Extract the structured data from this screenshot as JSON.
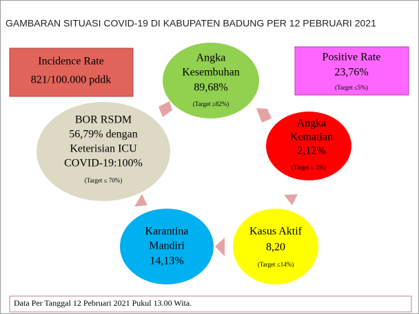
{
  "header": {
    "title": "GAMBARAN SITUASI COVID-19 DI KABUPATEN BADUNG PER 12 PEBRUARI 2021"
  },
  "incidence_rate": {
    "label": "Incidence Rate",
    "value": "821/100.000 pddk"
  },
  "positive_rate": {
    "label": "Positive Rate",
    "value": "23,76%",
    "target": "(Target ≤5%)"
  },
  "nodes": [
    {
      "lines": [
        "Angka",
        "Kesembuhan",
        "89,68%"
      ],
      "target": "(Target ≥82%)"
    },
    {
      "lines": [
        "Angka",
        "Kematian",
        "2,12%"
      ],
      "target": "(Target ≤ 3%)"
    },
    {
      "lines": [
        "Kasus Aktif",
        "8,20"
      ],
      "target": "(Target ≤14%)"
    },
    {
      "lines": [
        "Karantina",
        "Mandiri",
        "14,13%"
      ]
    },
    {
      "lines": [
        "BOR RSDM",
        "56,79% dengan",
        "Keterisian ICU",
        "COVID-19:100%"
      ],
      "target": "(Target ≤ 70%)"
    }
  ],
  "footer": "Data Per Tanggal 12 Pebruari 2021 Pukul 13.00 Wita."
}
